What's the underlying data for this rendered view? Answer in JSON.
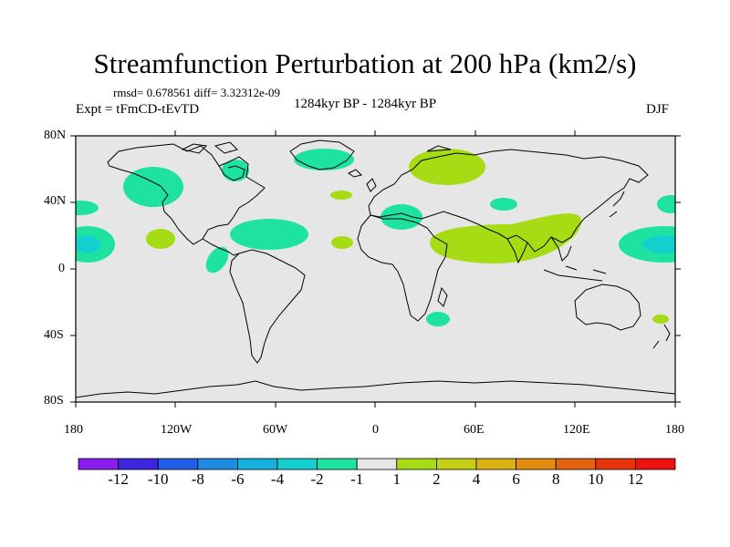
{
  "title": "Streamfunction Perturbation at 200 hPa (km2/s)",
  "stats": "rmsd= 0.678561 diff= 3.32312e-09",
  "experiment": "Expt = tFmCD-tEvTD",
  "period": "1284kyr BP - 1284kyr BP",
  "season": "DJF",
  "lat_ticks": [
    "80N",
    "40N",
    "0",
    "40S",
    "80S"
  ],
  "lon_ticks": [
    "180",
    "120W",
    "60W",
    "0",
    "60E",
    "120E",
    "180"
  ],
  "colorbar": {
    "labels": [
      "-12",
      "-10",
      "-8",
      "-6",
      "-4",
      "-2",
      "-1",
      "1",
      "2",
      "4",
      "6",
      "8",
      "10",
      "12"
    ],
    "colors": [
      "#8a1cf0",
      "#3c24e0",
      "#1f5fe6",
      "#1c8be0",
      "#12b2dc",
      "#14cfd0",
      "#1ee3a0",
      "#e6e6e6",
      "#a6dc14",
      "#c8d016",
      "#dcb212",
      "#e28c10",
      "#e2620e",
      "#e8340c",
      "#f01010"
    ]
  },
  "colors": {
    "ocean": "#e6e6e6",
    "positive_weak": "#a6dc14",
    "negative_weak": "#1ee3a0",
    "negative_mid": "#14cfd0"
  }
}
